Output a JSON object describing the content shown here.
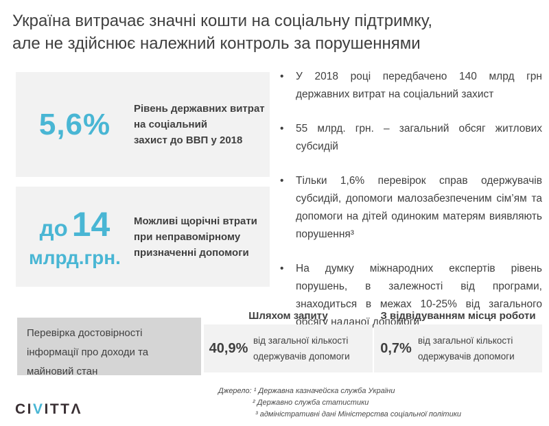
{
  "title": {
    "line1": "Україна витрачає значні кошти на соціальну підтримку,",
    "line2": "але не здійснює належний контроль за порушеннями"
  },
  "stats": [
    {
      "value": "5,6%",
      "label_lines": {
        "l1": "Рівень державних витрат",
        "l2": "на соціальний",
        "l3": "захист до ВВП у 2018"
      }
    },
    {
      "value_prefix": "до",
      "value": "14",
      "unit": "млрд.грн.",
      "label_lines": {
        "l1": "Можливі щорічні втрати",
        "l2": "при неправомірному",
        "l3": "призначенні допомоги"
      }
    }
  ],
  "bullets": [
    "У 2018 році передбачено 140 млрд грн державних витрат на соціальний захист",
    "55 млрд. грн. – загальний обсяг житлових субсидій",
    "Тільки 1,6% перевірок справ одержувачів субсидій, допомоги малозабезпеченим сім’ям та допомоги на дітей одиноким матерям виявляють порушення³",
    "На думку міжнародних експертів рівень порушень, в залежності від програми, знаходиться в межах 10-25% від загального обсягу наданої допомоги"
  ],
  "verification": {
    "label_lines": {
      "l1": "Перевірка достовірності",
      "l2": "інформації про доходи та",
      "l3": "майновий стан"
    },
    "columns": [
      {
        "header": "Шляхом запиту",
        "value": "40,9%",
        "desc_line1": "від загальної кількості",
        "desc_line2": "одержувачів допомоги"
      },
      {
        "header": "З відвідуванням місця роботи",
        "value": "0,7%",
        "desc_line1": "від загальної кількості",
        "desc_line2": "одержувачів допомоги"
      }
    ]
  },
  "footer": {
    "logo_pre": "CI",
    "logo_accent": "V",
    "logo_post": "ITTΛ",
    "sources": [
      "Джерело: ¹ Державна казначейска служба України",
      "² Державно служба статистики",
      "³ адміністративні дані Міністерства соціальної політики"
    ]
  },
  "colors": {
    "accent": "#49b6d4",
    "text_dark": "#3f3f3f",
    "box_bg": "#f2f2f2",
    "box_bg_dark": "#d5d5d5",
    "logo_dark": "#3a3034"
  }
}
